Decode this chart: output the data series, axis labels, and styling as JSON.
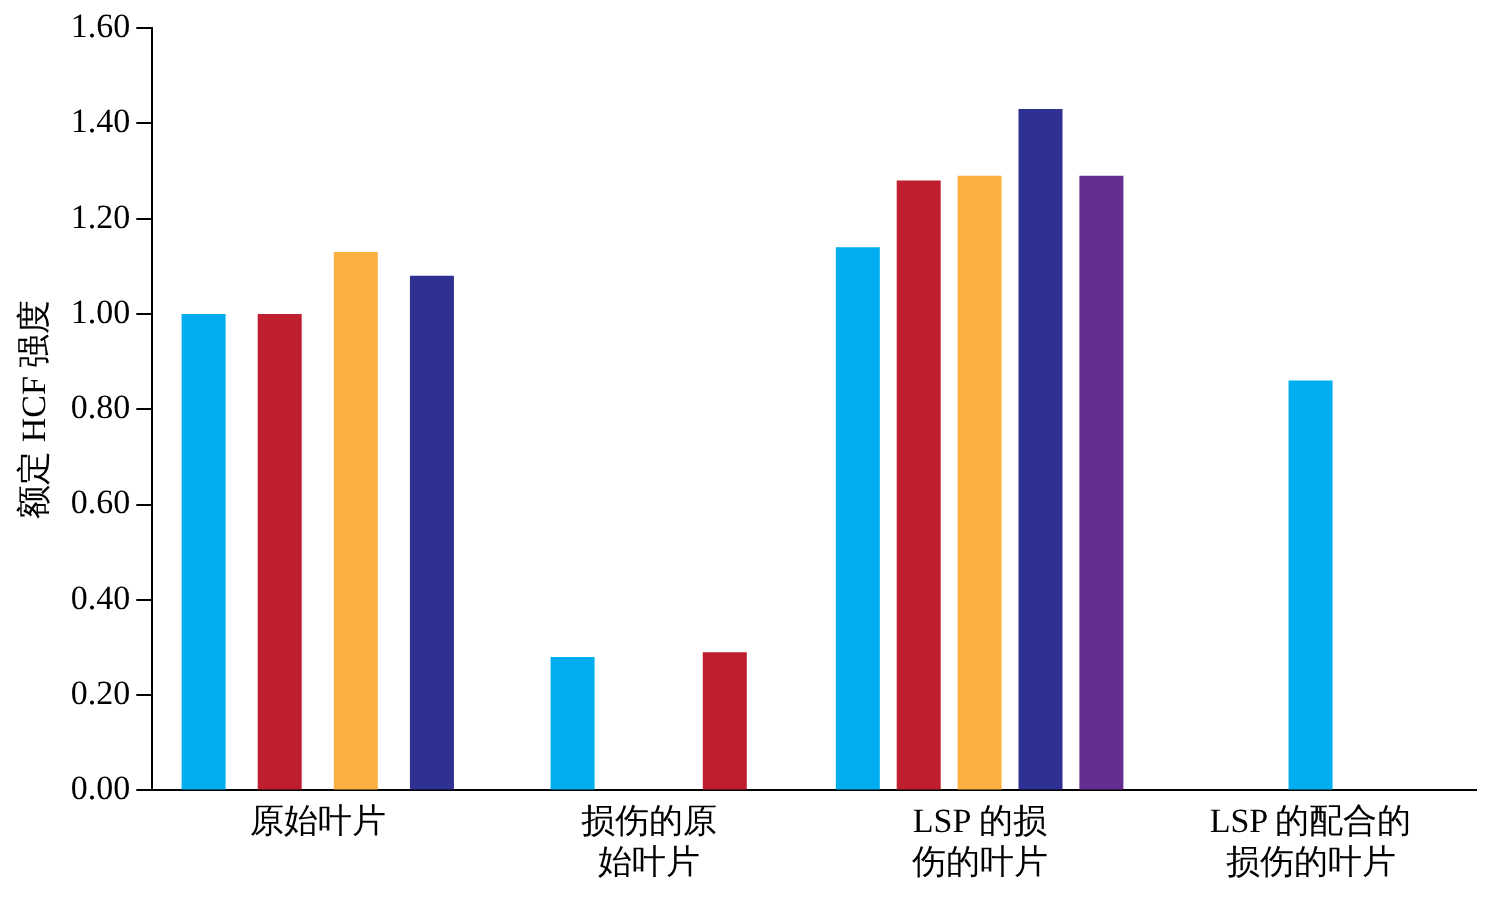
{
  "chart_data": {
    "type": "bar",
    "ylabel": "额定 HCF 强度",
    "categories": [
      "原始叶片",
      "损伤的原始叶片",
      "LSP 的损伤的叶片",
      "LSP 的配合的损伤的叶片"
    ],
    "series": [
      {
        "color": "#00aeef",
        "values": [
          1.0,
          0.28,
          1.14,
          0.86
        ]
      },
      {
        "color": "#be1e2d",
        "values": [
          1.0,
          0.29,
          1.28,
          null
        ]
      },
      {
        "color": "#fbb040",
        "values": [
          1.13,
          null,
          1.29,
          null
        ]
      },
      {
        "color": "#2e3192",
        "values": [
          1.08,
          null,
          1.43,
          null
        ]
      },
      {
        "color": "#662d91",
        "values": [
          null,
          null,
          1.29,
          null
        ]
      }
    ],
    "ylim": [
      0,
      1.6
    ],
    "yticks": [
      {
        "value": 0,
        "label": "0.00"
      },
      {
        "value": 0.2,
        "label": "0.20"
      },
      {
        "value": 0.4,
        "label": "0.40"
      },
      {
        "value": 0.6,
        "label": "0.60"
      },
      {
        "value": 0.8,
        "label": "0.80"
      },
      {
        "value": 1.0,
        "label": "1.00"
      },
      {
        "value": 1.2,
        "label": "1.20"
      },
      {
        "value": 1.4,
        "label": "1.40"
      },
      {
        "value": 1.6,
        "label": "1.60"
      }
    ],
    "grid": false,
    "legend": false
  }
}
